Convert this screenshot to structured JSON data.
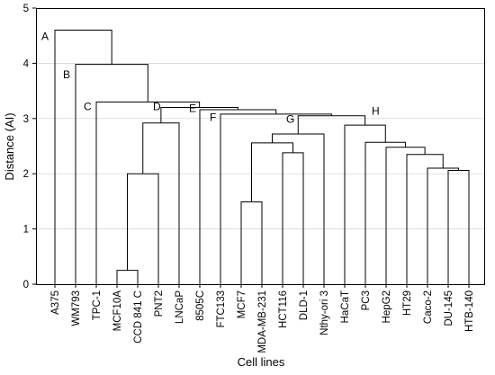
{
  "chart_data": {
    "type": "dendrogram",
    "xlabel": "Cell lines",
    "ylabel": "Distance (AI)",
    "ylim": [
      0,
      5
    ],
    "yticks": [
      0,
      1,
      2,
      3,
      4,
      5
    ],
    "grid": true,
    "leaves": [
      "A375",
      "WM793",
      "TPC-1",
      "MCF10A",
      "CCD 841 C",
      "PNT2",
      "LNCaP",
      "8505C",
      "FTC133",
      "MCF7",
      "MDA-MB-231",
      "HCT116",
      "DLD-1",
      "Nthy-ori 3",
      "HaCaT",
      "PC3",
      "HepG2",
      "HT29",
      "Caco-2",
      "DU-145",
      "HTB-140"
    ],
    "merges": [
      {
        "left": "MCF10A",
        "right": "CCD 841 C",
        "height": 0.25
      },
      {
        "left": "MCF7",
        "right": "MDA-MB-231",
        "height": 1.49
      },
      {
        "left": "DU-145",
        "right": "HTB-140",
        "height": 2.06
      },
      {
        "left": "HCT116",
        "right": "DLD-1",
        "height": 2.38
      },
      {
        "left": "{MCF10A,CCD 841 C}",
        "right": "PNT2",
        "height": 2.0
      },
      {
        "left": "Caco-2",
        "right": "{DU-145,HTB-140}",
        "height": 2.1
      },
      {
        "left": "HT29",
        "right": "{Caco-2,DU-145,HTB-140}",
        "height": 2.35
      },
      {
        "left": "HepG2",
        "right": "{HT29..HTB-140}",
        "height": 2.48
      },
      {
        "left": "{MCF7,MDA-MB-231}",
        "right": "{HCT116,DLD-1}",
        "height": 2.56
      },
      {
        "left": "PC3",
        "right": "{HepG2..HTB-140}",
        "height": 2.57
      },
      {
        "left": "{MCF7..DLD-1}",
        "right": "Nthy-ori 3",
        "height": 2.72
      },
      {
        "left": "HaCaT",
        "right": "{PC3..HTB-140}",
        "height": 2.88
      },
      {
        "left": "{MCF10A,CCD 841 C,PNT2}",
        "right": "LNCaP",
        "height": 2.92
      },
      {
        "label": "G",
        "left": "{MCF7..Nthy-ori 3}",
        "right": "{HaCaT..HTB-140}",
        "height": 3.05
      },
      {
        "label": "H",
        "left": "{MCF7..Nthy-ori 3}",
        "right": "{HaCaT..HTB-140}",
        "height": 3.05
      },
      {
        "label": "F",
        "left": "FTC133",
        "right": "{MCF7..HTB-140}",
        "height": 3.08
      },
      {
        "label": "E",
        "left": "8505C",
        "right": "{FTC133..HTB-140}",
        "height": 3.16
      },
      {
        "label": "D",
        "left": "{MCF10A..LNCaP}",
        "right": "{8505C..HTB-140}",
        "height": 3.2
      },
      {
        "label": "C",
        "left": "TPC-1",
        "right": "{MCF10A..HTB-140}",
        "height": 3.3
      },
      {
        "label": "B",
        "left": "WM793",
        "right": "{TPC-1..HTB-140}",
        "height": 3.98
      },
      {
        "label": "A",
        "left": "A375",
        "right": "{WM793..HTB-140}",
        "height": 4.6
      }
    ],
    "node_labels": [
      "A",
      "B",
      "C",
      "D",
      "E",
      "F",
      "G",
      "H"
    ]
  }
}
